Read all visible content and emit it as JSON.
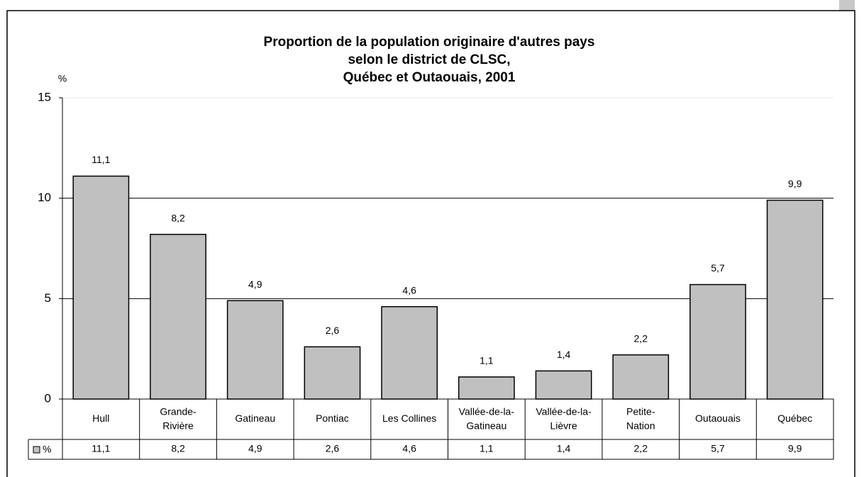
{
  "chart_data": {
    "type": "bar",
    "title": [
      "Proportion de la population originaire d'autres pays",
      "selon le district de CLSC,",
      "Québec et Outaouais, 2001"
    ],
    "y_label": "%",
    "categories": [
      "Hull",
      "Grande-Rivière",
      "Gatineau",
      "Pontiac",
      "Les Collines",
      "Vallée-de-la-Gatineau",
      "Vallée-de-la-Lièvre",
      "Petite-Nation",
      "Outaouais",
      "Québec"
    ],
    "series": [
      {
        "name": "%",
        "color": "#c0c0c0",
        "values": [
          11.1,
          8.2,
          4.9,
          2.6,
          4.6,
          1.1,
          1.4,
          2.2,
          5.7,
          9.9
        ],
        "value_labels": [
          "11,1",
          "8,2",
          "4,9",
          "2,6",
          "4,6",
          "1,1",
          "1,4",
          "2,2",
          "5,7",
          "9,9"
        ]
      }
    ],
    "ylim": [
      0,
      15
    ],
    "yticks": [
      0,
      5,
      10,
      15
    ],
    "grid": true,
    "data_table": true
  }
}
